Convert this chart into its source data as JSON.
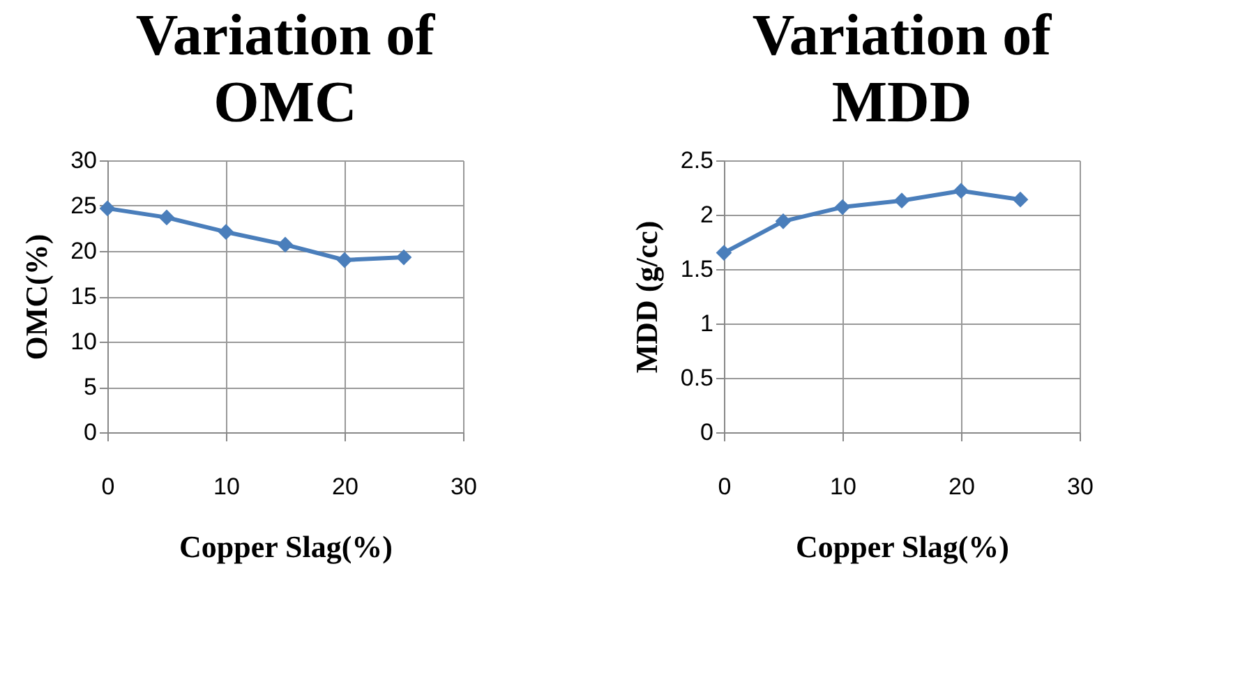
{
  "chart_data": [
    {
      "type": "line",
      "title": "Variation of OMC",
      "xlabel": "Copper Slag(%)",
      "ylabel": "OMC(%)",
      "x": [
        0,
        5,
        10,
        15,
        20,
        25
      ],
      "series": [
        {
          "color": "#4a7ebb",
          "values": [
            24.7,
            23.7,
            22.1,
            20.7,
            19.0,
            19.3
          ]
        }
      ],
      "xlim": [
        0,
        30
      ],
      "xticks": [
        0,
        10,
        20,
        30
      ],
      "ylim": [
        0,
        30
      ],
      "yticks": [
        0,
        5,
        10,
        15,
        20,
        25,
        30
      ],
      "grid": true,
      "marker": "diamond",
      "line_style": "solid"
    },
    {
      "type": "line",
      "title": "Variation of MDD",
      "xlabel": "Copper Slag(%)",
      "ylabel": "MDD (g/cc)",
      "x": [
        0,
        5,
        10,
        15,
        20,
        25
      ],
      "series": [
        {
          "color": "#4a7ebb",
          "values": [
            1.65,
            1.94,
            2.07,
            2.13,
            2.22,
            2.14
          ]
        }
      ],
      "xlim": [
        0,
        30
      ],
      "xticks": [
        0,
        10,
        20,
        30
      ],
      "ylim": [
        0,
        2.5
      ],
      "yticks": [
        0,
        0.5,
        1,
        1.5,
        2,
        2.5
      ],
      "grid": true,
      "marker": "diamond",
      "line_style": "solid"
    }
  ]
}
